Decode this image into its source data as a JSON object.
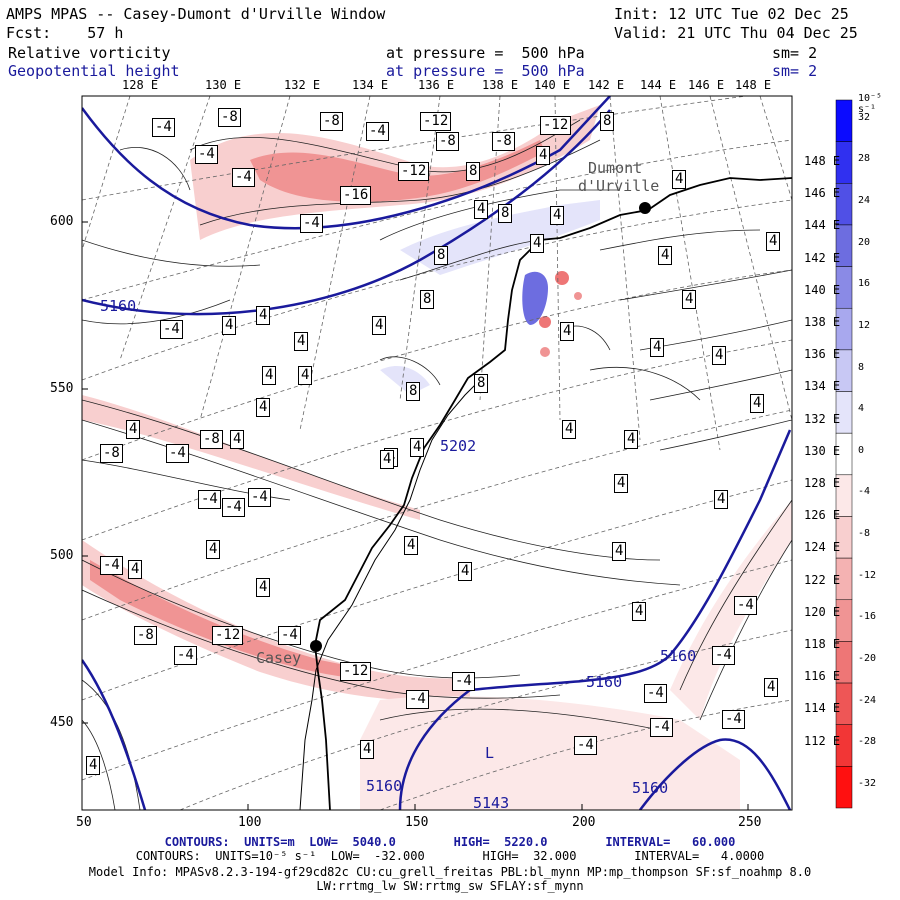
{
  "header": {
    "title": "AMPS MPAS -- Casey-Dumont d'Urville Window",
    "init": "Init: 12 UTC Tue 02 Dec 25",
    "fcst": "Fcst:    57 h",
    "valid": "Valid: 21 UTC Thu 04 Dec 25",
    "field1": "Relative vorticity",
    "field1_level": "at pressure =  500 hPa",
    "field1_sm": "sm= 2",
    "field2": "Geopotential height",
    "field2_level": "at pressure =  500 hPa",
    "field2_sm": "sm= 2"
  },
  "top_longitudes": [
    "128 E",
    "130 E",
    "132 E",
    "134 E",
    "136 E",
    "138 E",
    "140 E",
    "142 E",
    "144 E",
    "146 E",
    "148 E"
  ],
  "right_longitudes": [
    "148 E",
    "146 E",
    "144 E",
    "142 E",
    "140 E",
    "138 E",
    "136 E",
    "134 E",
    "132 E",
    "130 E",
    "128 E",
    "126 E",
    "124 E",
    "122 E",
    "120 E",
    "118 E",
    "116 E",
    "114 E",
    "112 E"
  ],
  "left_axis": [
    "600",
    "550",
    "500",
    "450"
  ],
  "bottom_axis": [
    "50",
    "100",
    "150",
    "200",
    "250"
  ],
  "colorbar": {
    "unit": "10⁻⁵ s⁻¹",
    "labels": [
      "32",
      "28",
      "24",
      "20",
      "16",
      "12",
      "8",
      "4",
      "0",
      "-4",
      "-8",
      "-12",
      "-16",
      "-20",
      "-24",
      "-28",
      "-32"
    ],
    "colors": [
      "#0b0bff",
      "#3030f0",
      "#5050e6",
      "#6d6de0",
      "#8a8ae6",
      "#a8a8ee",
      "#c8c8f4",
      "#e4e4fa",
      "#ffffff",
      "#fce8e8",
      "#f8cfcf",
      "#f4b2b2",
      "#f09494",
      "#ee7676",
      "#ee5656",
      "#f23636",
      "#ff1010"
    ]
  },
  "map_labels": {
    "station1": "Dumont",
    "station1b": "d'Urville",
    "station2": "Casey",
    "low_letter": "L",
    "low_value": "5143",
    "h5160a": "5160",
    "h5160b": "5160",
    "h5160c": "5160",
    "h5160d": "5160",
    "h5160e": "5160",
    "h5202": "5202"
  },
  "vorticity_boxes": [
    "-4",
    "-8",
    "-4",
    "-8",
    "-12",
    "-8",
    "-12",
    "-8",
    "-4",
    "-4",
    "-12",
    "-16",
    "-4",
    "8",
    "4",
    "8",
    "4",
    "8",
    "8",
    "4",
    "4",
    "4",
    "4",
    "4",
    "4",
    "4",
    "8",
    "4",
    "4",
    "-4",
    "4",
    "4",
    "8",
    "4",
    "-8",
    "-4",
    "-4",
    "-4",
    "4",
    "4",
    "-8",
    "-4",
    "4",
    "4",
    "4",
    "4",
    "4",
    "4",
    "4",
    "4",
    "-4",
    "4",
    "-8",
    "-4",
    "-4",
    "-12",
    "-12",
    "-4",
    "-4",
    "-4",
    "-4",
    "4",
    "-4",
    "-4",
    "-4",
    "-4",
    "4",
    "4",
    "4",
    "4",
    "4",
    "8",
    "4",
    "4",
    "4",
    "4",
    "4",
    "4",
    "4"
  ],
  "footer": {
    "line1": "CONTOURS:  UNITS=m  LOW=  5040.0        HIGH=  5220.0        INTERVAL=   60.000",
    "line2": "CONTOURS:  UNITS=10⁻⁵ s⁻¹  LOW=  -32.000        HIGH=  32.000        INTERVAL=   4.0000",
    "line3": "Model Info: MPASv8.2.3-194-gf29cd82c CU:cu_grell_freitas PBL:bl_mynn MP:mp_thompson SF:sf_noahmp 8.0",
    "line4": "LW:rrtmg_lw SW:rrtmg_sw SFLAY:sf_mynn"
  }
}
